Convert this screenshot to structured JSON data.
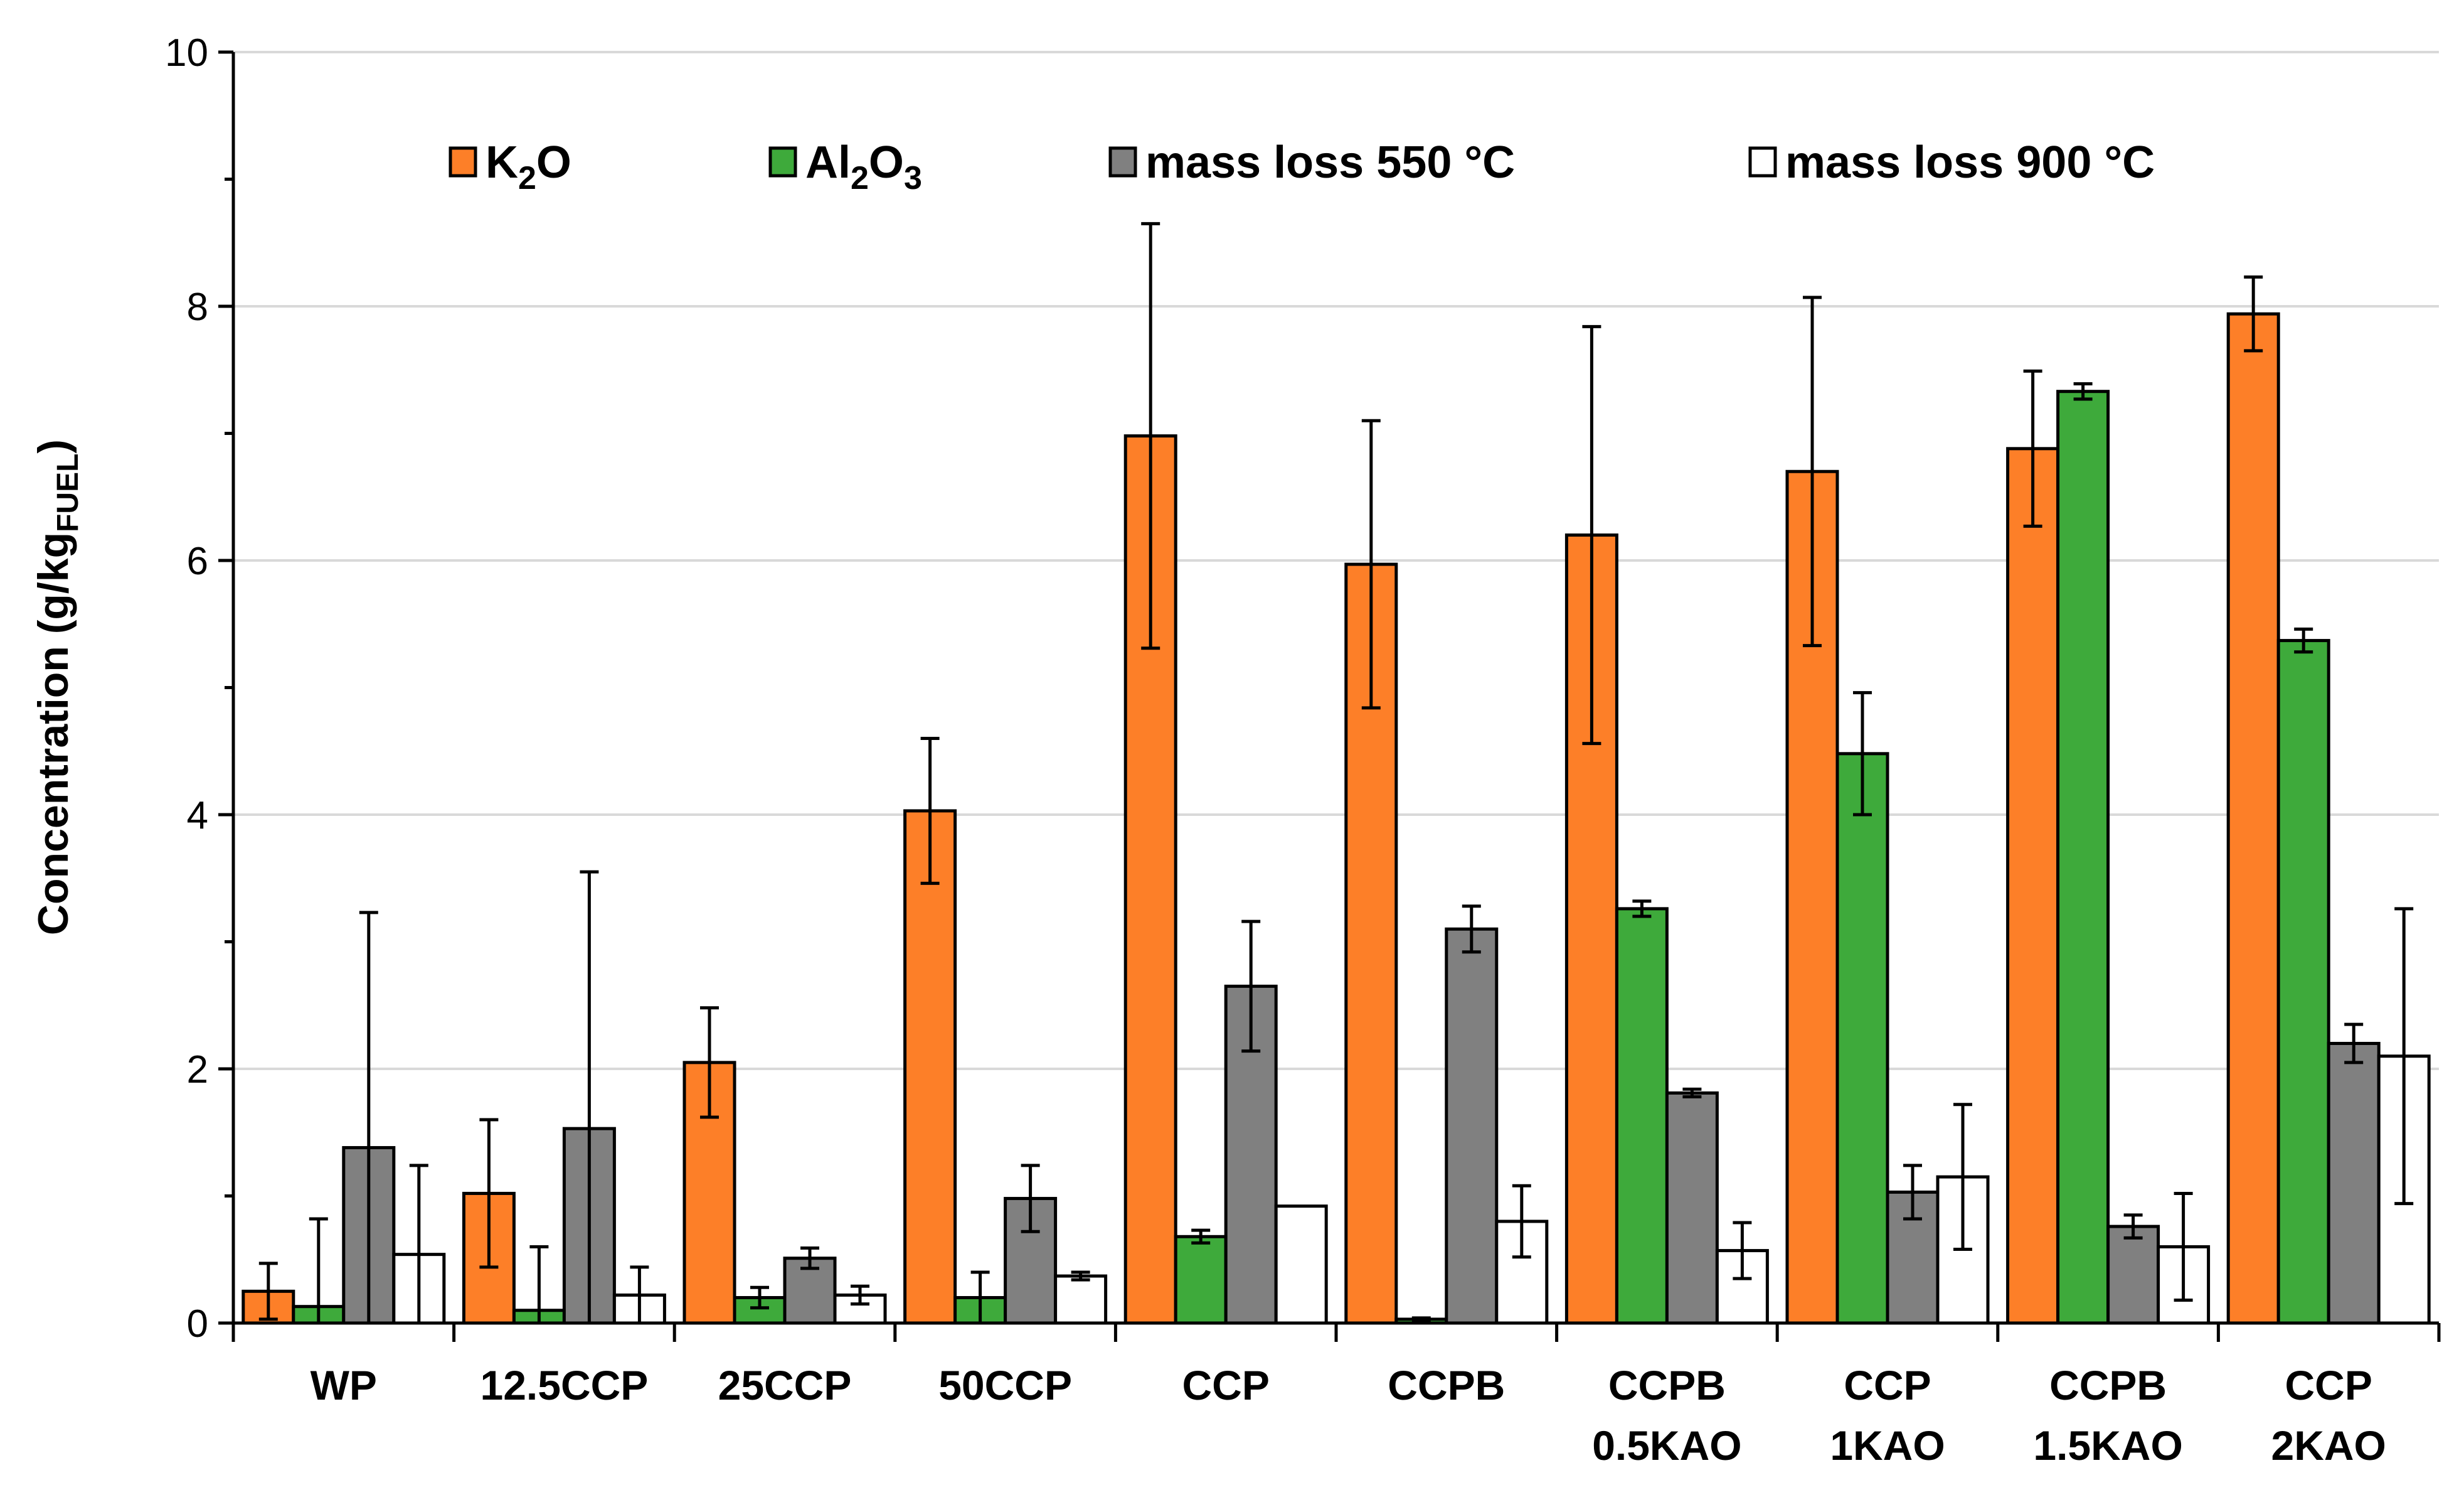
{
  "chart_data": {
    "type": "bar",
    "title": "",
    "xlabel": "",
    "ylabel": "Concentration (g/kg",
    "ylabel_subscript": "FUEL",
    "ylabel_close": ")",
    "ylim": [
      0,
      10
    ],
    "yticks": [
      0,
      2,
      4,
      6,
      8,
      10
    ],
    "ytick_labels": [
      "0",
      "2",
      "4",
      "6",
      "8",
      "10"
    ],
    "grid": true,
    "legend_position": "top",
    "categories": [
      [
        "WP"
      ],
      [
        "12.5CCP"
      ],
      [
        "25CCP"
      ],
      [
        "50CCP"
      ],
      [
        "CCP"
      ],
      [
        "CCPB"
      ],
      [
        "CCPB",
        "0.5KAO"
      ],
      [
        "CCP",
        "1KAO"
      ],
      [
        "CCPB",
        "1.5KAO"
      ],
      [
        "CCP",
        "2KAO"
      ]
    ],
    "series": [
      {
        "name": "K2O",
        "label_parts": [
          "K",
          "2",
          "O"
        ],
        "color": "#fd7f28",
        "values": [
          0.25,
          1.02,
          2.05,
          4.03,
          6.98,
          5.97,
          6.2,
          6.7,
          6.88,
          7.94
        ],
        "err": [
          0.22,
          0.58,
          0.43,
          0.57,
          1.67,
          1.13,
          1.64,
          1.37,
          0.61,
          0.29
        ]
      },
      {
        "name": "Al2O3",
        "label_parts": [
          "Al",
          "2",
          "O",
          "3"
        ],
        "color": "#3eaa3b",
        "values": [
          0.13,
          0.1,
          0.2,
          0.2,
          0.68,
          0.03,
          3.26,
          4.48,
          7.33,
          5.37
        ],
        "err": [
          0.69,
          0.5,
          0.08,
          0.2,
          0.05,
          0.01,
          0.06,
          0.48,
          0.06,
          0.09
        ]
      },
      {
        "name": "mass loss 550 °C",
        "label_parts": [
          "mass loss 550 °C"
        ],
        "color": "#808080",
        "values": [
          1.38,
          1.53,
          0.51,
          0.98,
          2.65,
          3.1,
          1.81,
          1.03,
          0.76,
          2.2
        ],
        "err": [
          1.85,
          2.02,
          0.08,
          0.26,
          0.51,
          0.18,
          0.03,
          0.21,
          0.09,
          0.15
        ]
      },
      {
        "name": "mass loss 900 °C",
        "label_parts": [
          "mass loss 900 °C"
        ],
        "color": "#ffffff",
        "values": [
          0.54,
          0.22,
          0.22,
          0.37,
          0.92,
          0.8,
          0.57,
          1.15,
          0.6,
          2.1
        ],
        "err": [
          0.7,
          0.22,
          0.07,
          0.03,
          0,
          0.28,
          0.22,
          0.57,
          0.42,
          1.16
        ]
      }
    ]
  }
}
